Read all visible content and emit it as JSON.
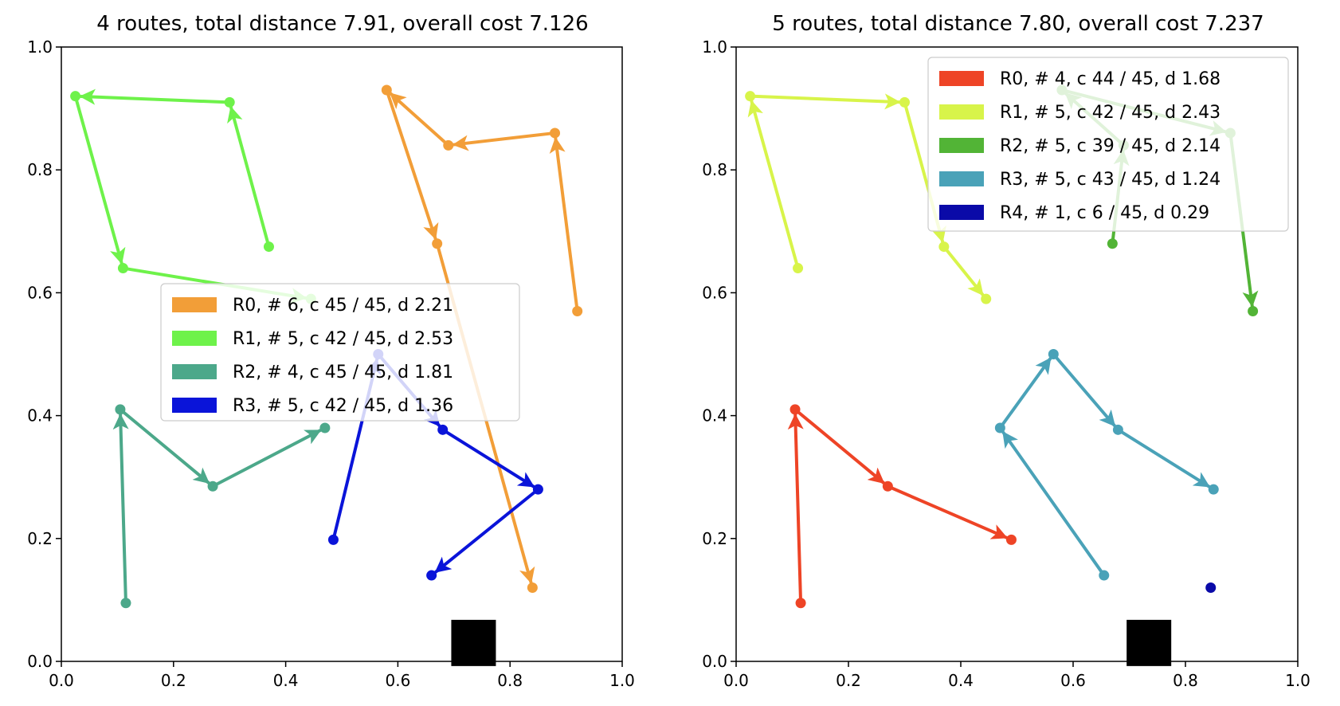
{
  "chart_data": [
    {
      "type": "line",
      "title": "4 routes, total distance 7.91, overall cost 7.126",
      "xlim": [
        0,
        1
      ],
      "ylim": [
        0,
        1
      ],
      "xticks": [
        "0.0",
        "0.2",
        "0.4",
        "0.6",
        "0.8",
        "1.0"
      ],
      "yticks": [
        "0.0",
        "0.2",
        "0.4",
        "0.6",
        "0.8",
        "1.0"
      ],
      "grid": false,
      "legend_position": "center",
      "depot": {
        "x": 0.735,
        "y": 0.03,
        "label": "depot"
      },
      "series": [
        {
          "name": "R0, # 6, c 45 / 45, d 2.21",
          "color": "#f29e38",
          "points": [
            [
              0.92,
              0.57
            ],
            [
              0.88,
              0.86
            ],
            [
              0.69,
              0.84
            ],
            [
              0.58,
              0.93
            ],
            [
              0.67,
              0.68
            ],
            [
              0.84,
              0.12
            ]
          ]
        },
        {
          "name": "R1, # 5, c 42 / 45, d 2.53",
          "color": "#6ef24a",
          "points": [
            [
              0.37,
              0.675
            ],
            [
              0.3,
              0.91
            ],
            [
              0.025,
              0.92
            ],
            [
              0.11,
              0.64
            ],
            [
              0.445,
              0.59
            ]
          ]
        },
        {
          "name": "R2, # 4, c 45 / 45, d 1.81",
          "color": "#4ca88a",
          "points": [
            [
              0.115,
              0.095
            ],
            [
              0.105,
              0.41
            ],
            [
              0.27,
              0.285
            ],
            [
              0.47,
              0.38
            ]
          ]
        },
        {
          "name": "R3, # 5, c 42 / 45, d 1.36",
          "color": "#0a14d9",
          "points": [
            [
              0.485,
              0.198
            ],
            [
              0.565,
              0.5
            ],
            [
              0.68,
              0.377
            ],
            [
              0.85,
              0.28
            ],
            [
              0.66,
              0.14
            ]
          ]
        }
      ]
    },
    {
      "type": "line",
      "title": "5 routes, total distance 7.80, overall cost 7.237",
      "xlim": [
        0,
        1
      ],
      "ylim": [
        0,
        1
      ],
      "xticks": [
        "0.0",
        "0.2",
        "0.4",
        "0.6",
        "0.8",
        "1.0"
      ],
      "yticks": [
        "0.0",
        "0.2",
        "0.4",
        "0.6",
        "0.8",
        "1.0"
      ],
      "grid": false,
      "legend_position": "upper right",
      "depot": {
        "x": 0.735,
        "y": 0.03,
        "label": "depot"
      },
      "series": [
        {
          "name": "R0, # 4, c 44 / 45, d 1.68",
          "color": "#ee4426",
          "points": [
            [
              0.115,
              0.095
            ],
            [
              0.105,
              0.41
            ],
            [
              0.27,
              0.285
            ],
            [
              0.49,
              0.198
            ]
          ]
        },
        {
          "name": "R1, # 5, c 42 / 45, d 2.43",
          "color": "#d8f44a",
          "points": [
            [
              0.11,
              0.64
            ],
            [
              0.025,
              0.92
            ],
            [
              0.3,
              0.91
            ],
            [
              0.37,
              0.675
            ],
            [
              0.445,
              0.59
            ]
          ]
        },
        {
          "name": "R2, # 5, c 39 / 45, d 2.14",
          "color": "#52b436",
          "points": [
            [
              0.67,
              0.68
            ],
            [
              0.69,
              0.84
            ],
            [
              0.58,
              0.93
            ],
            [
              0.88,
              0.86
            ],
            [
              0.92,
              0.57
            ]
          ]
        },
        {
          "name": "R3, # 5, c 43 / 45, d 1.24",
          "color": "#4aa2b8",
          "points": [
            [
              0.655,
              0.14
            ],
            [
              0.47,
              0.38
            ],
            [
              0.565,
              0.5
            ],
            [
              0.68,
              0.377
            ],
            [
              0.85,
              0.28
            ]
          ]
        },
        {
          "name": "R4, # 1, c 6 / 45, d 0.29",
          "color": "#0a0aa8",
          "points": [
            [
              0.845,
              0.12
            ]
          ]
        }
      ]
    }
  ]
}
